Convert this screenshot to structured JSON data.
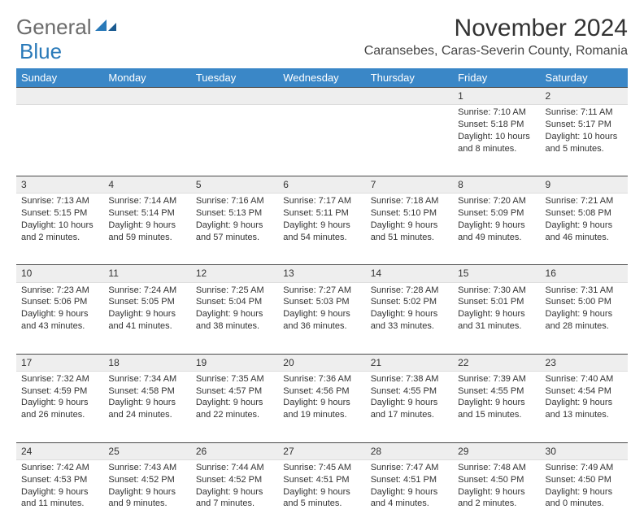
{
  "brand": {
    "part1": "General",
    "part2": "Blue"
  },
  "title": "November 2024",
  "subtitle": "Caransebes, Caras-Severin County, Romania",
  "header_bg": "#3a87c7",
  "daynum_bg": "#eeeeee",
  "border_color": "#4a4a4a",
  "text_color": "#333333",
  "days": [
    "Sunday",
    "Monday",
    "Tuesday",
    "Wednesday",
    "Thursday",
    "Friday",
    "Saturday"
  ],
  "weeks": [
    [
      null,
      null,
      null,
      null,
      null,
      {
        "n": "1",
        "sr": "7:10 AM",
        "ss": "5:18 PM",
        "dl": "10 hours and 8 minutes."
      },
      {
        "n": "2",
        "sr": "7:11 AM",
        "ss": "5:17 PM",
        "dl": "10 hours and 5 minutes."
      }
    ],
    [
      {
        "n": "3",
        "sr": "7:13 AM",
        "ss": "5:15 PM",
        "dl": "10 hours and 2 minutes."
      },
      {
        "n": "4",
        "sr": "7:14 AM",
        "ss": "5:14 PM",
        "dl": "9 hours and 59 minutes."
      },
      {
        "n": "5",
        "sr": "7:16 AM",
        "ss": "5:13 PM",
        "dl": "9 hours and 57 minutes."
      },
      {
        "n": "6",
        "sr": "7:17 AM",
        "ss": "5:11 PM",
        "dl": "9 hours and 54 minutes."
      },
      {
        "n": "7",
        "sr": "7:18 AM",
        "ss": "5:10 PM",
        "dl": "9 hours and 51 minutes."
      },
      {
        "n": "8",
        "sr": "7:20 AM",
        "ss": "5:09 PM",
        "dl": "9 hours and 49 minutes."
      },
      {
        "n": "9",
        "sr": "7:21 AM",
        "ss": "5:08 PM",
        "dl": "9 hours and 46 minutes."
      }
    ],
    [
      {
        "n": "10",
        "sr": "7:23 AM",
        "ss": "5:06 PM",
        "dl": "9 hours and 43 minutes."
      },
      {
        "n": "11",
        "sr": "7:24 AM",
        "ss": "5:05 PM",
        "dl": "9 hours and 41 minutes."
      },
      {
        "n": "12",
        "sr": "7:25 AM",
        "ss": "5:04 PM",
        "dl": "9 hours and 38 minutes."
      },
      {
        "n": "13",
        "sr": "7:27 AM",
        "ss": "5:03 PM",
        "dl": "9 hours and 36 minutes."
      },
      {
        "n": "14",
        "sr": "7:28 AM",
        "ss": "5:02 PM",
        "dl": "9 hours and 33 minutes."
      },
      {
        "n": "15",
        "sr": "7:30 AM",
        "ss": "5:01 PM",
        "dl": "9 hours and 31 minutes."
      },
      {
        "n": "16",
        "sr": "7:31 AM",
        "ss": "5:00 PM",
        "dl": "9 hours and 28 minutes."
      }
    ],
    [
      {
        "n": "17",
        "sr": "7:32 AM",
        "ss": "4:59 PM",
        "dl": "9 hours and 26 minutes."
      },
      {
        "n": "18",
        "sr": "7:34 AM",
        "ss": "4:58 PM",
        "dl": "9 hours and 24 minutes."
      },
      {
        "n": "19",
        "sr": "7:35 AM",
        "ss": "4:57 PM",
        "dl": "9 hours and 22 minutes."
      },
      {
        "n": "20",
        "sr": "7:36 AM",
        "ss": "4:56 PM",
        "dl": "9 hours and 19 minutes."
      },
      {
        "n": "21",
        "sr": "7:38 AM",
        "ss": "4:55 PM",
        "dl": "9 hours and 17 minutes."
      },
      {
        "n": "22",
        "sr": "7:39 AM",
        "ss": "4:55 PM",
        "dl": "9 hours and 15 minutes."
      },
      {
        "n": "23",
        "sr": "7:40 AM",
        "ss": "4:54 PM",
        "dl": "9 hours and 13 minutes."
      }
    ],
    [
      {
        "n": "24",
        "sr": "7:42 AM",
        "ss": "4:53 PM",
        "dl": "9 hours and 11 minutes."
      },
      {
        "n": "25",
        "sr": "7:43 AM",
        "ss": "4:52 PM",
        "dl": "9 hours and 9 minutes."
      },
      {
        "n": "26",
        "sr": "7:44 AM",
        "ss": "4:52 PM",
        "dl": "9 hours and 7 minutes."
      },
      {
        "n": "27",
        "sr": "7:45 AM",
        "ss": "4:51 PM",
        "dl": "9 hours and 5 minutes."
      },
      {
        "n": "28",
        "sr": "7:47 AM",
        "ss": "4:51 PM",
        "dl": "9 hours and 4 minutes."
      },
      {
        "n": "29",
        "sr": "7:48 AM",
        "ss": "4:50 PM",
        "dl": "9 hours and 2 minutes."
      },
      {
        "n": "30",
        "sr": "7:49 AM",
        "ss": "4:50 PM",
        "dl": "9 hours and 0 minutes."
      }
    ]
  ],
  "labels": {
    "sunrise": "Sunrise:",
    "sunset": "Sunset:",
    "daylight": "Daylight:"
  }
}
